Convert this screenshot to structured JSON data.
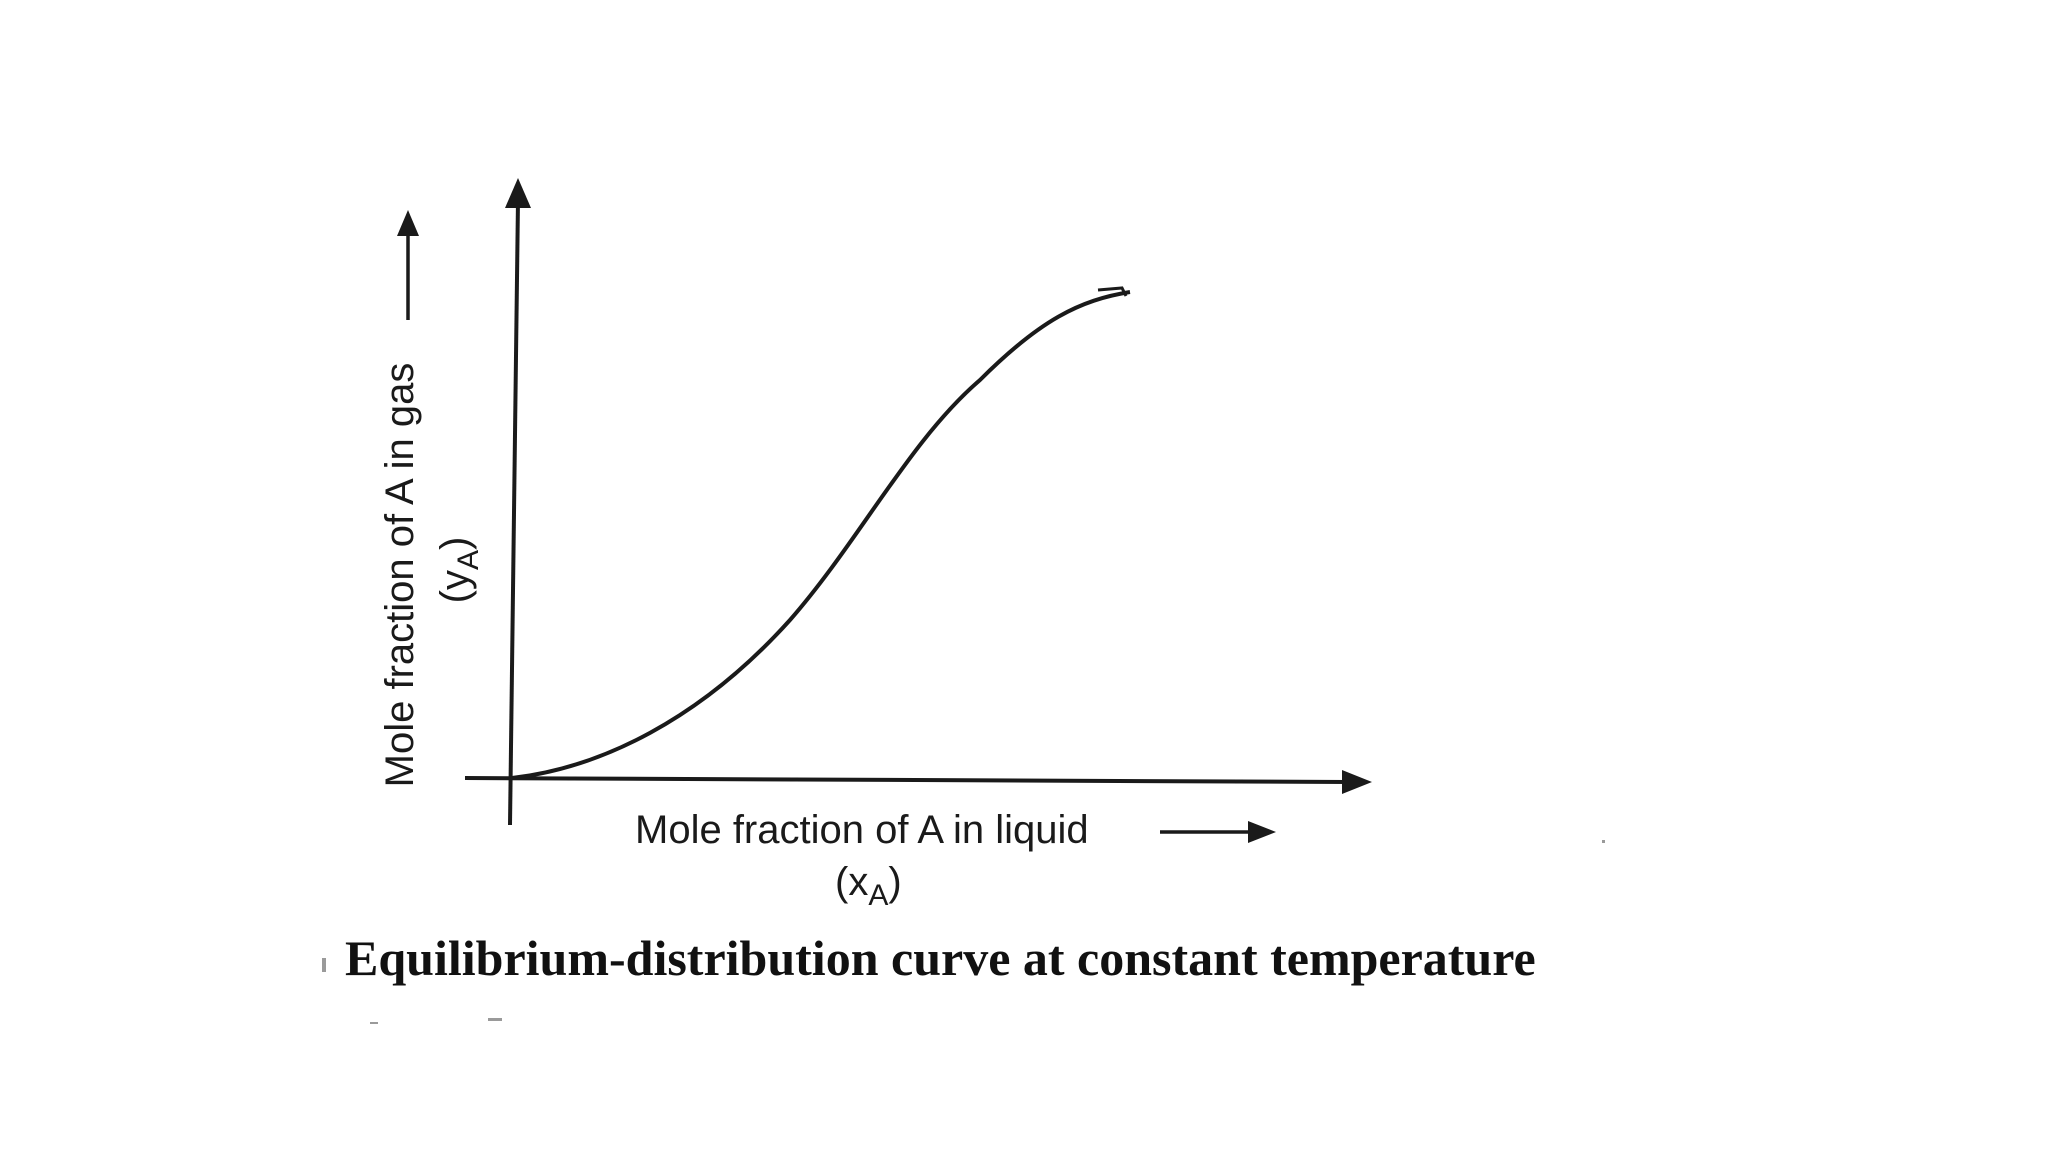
{
  "diagram": {
    "type": "equilibrium-distribution-curve",
    "x_axis": {
      "label": "Mole fraction of A in liquid",
      "symbol_base": "(x",
      "symbol_sub": "A",
      "symbol_close": ")"
    },
    "y_axis": {
      "label": "Mole fraction of A in gas",
      "symbol_base": "(y",
      "symbol_sub": "A",
      "symbol_close": ")"
    },
    "curve_shape": "sigmoid rising from origin, leveling off",
    "caption": "Equilibrium-distribution curve at constant temperature"
  }
}
